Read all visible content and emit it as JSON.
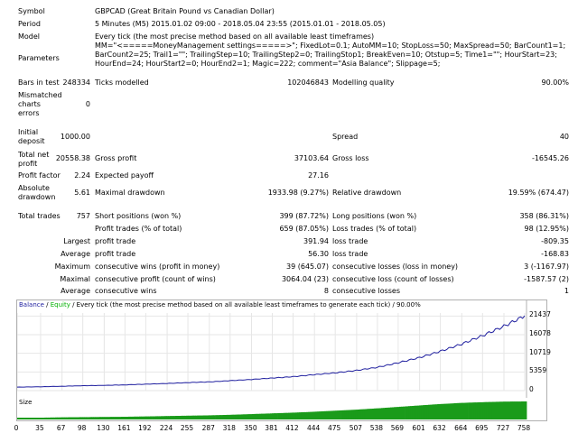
{
  "summary": {
    "symbol_label": "Symbol",
    "symbol_value": "GBPCAD (Great Britain Pound vs Canadian Dollar)",
    "period_label": "Period",
    "period_value": "5 Minutes (M5) 2015.01.02 09:00 - 2018.05.04 23:55 (2015.01.01 - 2018.05.05)",
    "model_label": "Model",
    "model_value": "Every tick (the most precise method based on all available least timeframes)",
    "parameters_label": "Parameters",
    "parameters_value": "MM=\"<=====MoneyManagement settings=====>\"; FixedLot=0.1; AutoMM=10; StopLoss=50; MaxSpread=50; BarCount1=1; BarCount2=25; Trail1=\"\"; TrailingStep=10; TrailingStep2=0; TrailingStop1; BreakEven=10; Otstup=5; Time1=\"\"; HourStart=23; HourEnd=24; HourStart2=0; HourEnd2=1; Magic=222; comment=\"Asia Balance\"; Slippage=5;",
    "bars_label": "Bars in test",
    "bars_value": "248334",
    "ticks_label": "Ticks modelled",
    "ticks_value": "102046843",
    "quality_label": "Modelling quality",
    "quality_value": "90.00%",
    "mismatched_label_1": "Mismatched",
    "mismatched_label_2": "charts",
    "mismatched_label_3": "errors",
    "mismatched_value": "0",
    "initial_label_1": "Initial",
    "initial_label_2": "deposit",
    "initial_value": "1000.00",
    "spread_label": "Spread",
    "spread_value": "40",
    "net_label_1": "Total net",
    "net_label_2": "profit",
    "net_value": "20558.38",
    "gross_profit_label": "Gross profit",
    "gross_profit_value": "37103.64",
    "gross_loss_label": "Gross loss",
    "gross_loss_value": "-16545.26",
    "pf_label": "Profit factor",
    "pf_value": "2.24",
    "ep_label": "Expected payoff",
    "ep_value": "27.16",
    "abs_dd_label_1": "Absolute",
    "abs_dd_label_2": "drawdown",
    "abs_dd_value": "5.61",
    "max_dd_label": "Maximal drawdown",
    "max_dd_value": "1933.98 (9.27%)",
    "rel_dd_label": "Relative drawdown",
    "rel_dd_value": "19.59% (674.47)",
    "total_trades_label": "Total trades",
    "total_trades_value": "757",
    "short_label": "Short positions (won %)",
    "short_value": "399 (87.72%)",
    "long_label": "Long positions (won %)",
    "long_value": "358 (86.31%)",
    "profit_trades_label": "Profit trades (% of total)",
    "profit_trades_value": "659 (87.05%)",
    "loss_trades_label": "Loss trades (% of total)",
    "loss_trades_value": "98 (12.95%)",
    "largest_label": "Largest",
    "largest_profit_label": "profit trade",
    "largest_profit_value": "391.94",
    "largest_loss_label": "loss trade",
    "largest_loss_value": "-809.35",
    "average_label": "Average",
    "average_profit_label": "profit trade",
    "average_profit_value": "56.30",
    "average_loss_label": "loss trade",
    "average_loss_value": "-168.83",
    "maximum_label": "Maximum",
    "max_cons_wins_label": "consecutive wins (profit in money)",
    "max_cons_wins_value": "39 (645.07)",
    "max_cons_losses_label": "consecutive losses (loss in money)",
    "max_cons_losses_value": "3 (-1167.97)",
    "maximal_label": "Maximal",
    "maximal_profit_label": "consecutive profit (count of wins)",
    "maximal_profit_value": "3064.04 (23)",
    "maximal_loss_label": "consecutive loss (count of losses)",
    "maximal_loss_value": "-1587.57 (2)",
    "average2_label": "Average",
    "avg_cons_wins_label": "consecutive wins",
    "avg_cons_wins_value": "8",
    "avg_cons_losses_label": "consecutive losses",
    "avg_cons_losses_value": "1"
  },
  "chart_header": {
    "balance": "Balance",
    "sep1": " / ",
    "equity": "Equity",
    "rest": " / Every tick (the most precise method based on all available least timeframes to generate each tick) / 90.00%"
  },
  "size_label": "Size",
  "colors": {
    "balance": "#1f1f9f",
    "equity": "#00b000",
    "size_bars": "#1a9b1a"
  },
  "chart_data": {
    "type": "line",
    "y_ticks": [
      "21437",
      "16078",
      "10719",
      "5359",
      "0"
    ],
    "y_tick_values": [
      21437,
      16078,
      10719,
      5359,
      0
    ],
    "ylim": [
      0,
      22300
    ],
    "x_ticks": [
      "0",
      "35",
      "67",
      "98",
      "130",
      "161",
      "192",
      "224",
      "255",
      "287",
      "318",
      "350",
      "381",
      "412",
      "444",
      "475",
      "507",
      "538",
      "569",
      "601",
      "632",
      "664",
      "695",
      "727",
      "758"
    ],
    "xlim": [
      0,
      758
    ],
    "series": [
      {
        "name": "Balance",
        "x": [
          0,
          35,
          67,
          98,
          130,
          161,
          192,
          224,
          255,
          287,
          318,
          350,
          381,
          412,
          444,
          475,
          507,
          538,
          569,
          601,
          632,
          664,
          695,
          727,
          758
        ],
        "values": [
          1000,
          1100,
          1250,
          1400,
          1500,
          1650,
          1850,
          2050,
          2300,
          2500,
          2850,
          3200,
          3600,
          4000,
          4600,
          5100,
          5800,
          6700,
          8000,
          9500,
          11300,
          13400,
          15800,
          18500,
          21500
        ]
      }
    ],
    "size_series": {
      "name": "Size",
      "x": [
        0,
        35,
        67,
        98,
        130,
        161,
        192,
        224,
        255,
        287,
        318,
        350,
        381,
        412,
        444,
        475,
        507,
        538,
        569,
        601,
        632,
        664,
        695,
        727,
        758
      ],
      "values": [
        0.1,
        0.1,
        0.12,
        0.13,
        0.14,
        0.15,
        0.17,
        0.19,
        0.21,
        0.23,
        0.26,
        0.3,
        0.34,
        0.38,
        0.43,
        0.49,
        0.55,
        0.62,
        0.7,
        0.78,
        0.86,
        0.92,
        0.96,
        0.99,
        1.0
      ]
    }
  }
}
